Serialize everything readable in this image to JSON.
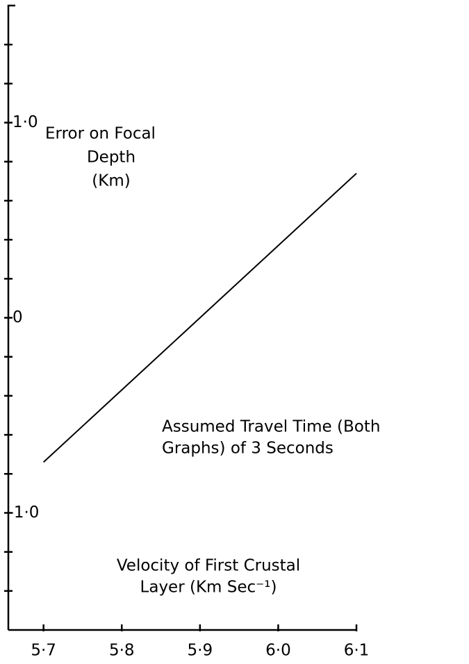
{
  "chart_data": {
    "type": "line",
    "ylabel": [
      "Error on Focal",
      "Depth",
      "(Km)"
    ],
    "xlabel": [
      "Velocity of First Crustal",
      "Layer (Km Sec⁻¹)"
    ],
    "annotation": [
      "Assumed Travel Time (Both",
      "Graphs) of 3 Seconds"
    ],
    "x": [
      5.7,
      6.1
    ],
    "series": [
      {
        "color": "#000000",
        "values": [
          -0.74,
          0.74
        ]
      }
    ],
    "xlim": [
      5.655,
      6.1
    ],
    "ylim": [
      -1.6,
      1.6
    ],
    "xticks": [
      {
        "value": 5.7,
        "label": "5·7"
      },
      {
        "value": 5.8,
        "label": "5·8"
      },
      {
        "value": 5.9,
        "label": "5·9"
      },
      {
        "value": 6.0,
        "label": "6·0"
      },
      {
        "value": 6.1,
        "label": "6·1"
      }
    ],
    "yticks": [
      {
        "value": -1.0,
        "label": "-1·0"
      },
      0,
      {
        "value": 1.0,
        "label": "1·0"
      }
    ],
    "yminor_ticks": [
      -1.4,
      -1.2,
      -0.8,
      -0.6,
      -0.4,
      -0.2,
      0.2,
      0.4,
      0.6,
      0.8,
      1.2,
      1.4
    ]
  }
}
